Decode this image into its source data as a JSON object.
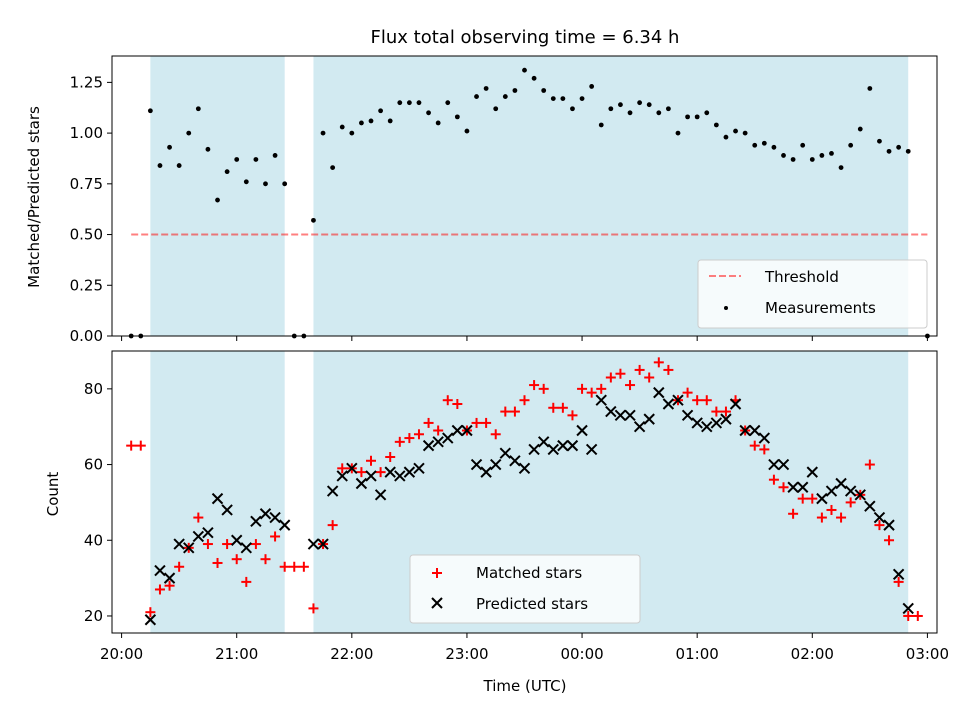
{
  "chart_data": [
    {
      "type": "scatter",
      "title": "Flux total observing time = 6.34 h",
      "xlabel": "",
      "ylabel": "Matched/Predicted stars",
      "ylim": [
        0,
        1.38
      ],
      "yticks": [
        "0.00",
        "0.25",
        "0.50",
        "0.75",
        "1.00",
        "1.25"
      ],
      "threshold": 0.5,
      "legend": {
        "placement": "lower-right",
        "entries": [
          "Threshold",
          "Measurements"
        ]
      },
      "measurements": [
        [
          "20:05",
          0
        ],
        [
          "20:10",
          0
        ],
        [
          "20:15",
          1.11
        ],
        [
          "20:20",
          0.84
        ],
        [
          "20:25",
          0.93
        ],
        [
          "20:30",
          0.84
        ],
        [
          "20:35",
          1.0
        ],
        [
          "20:40",
          1.12
        ],
        [
          "20:45",
          0.92
        ],
        [
          "20:50",
          0.67
        ],
        [
          "20:55",
          0.81
        ],
        [
          "21:00",
          0.87
        ],
        [
          "21:05",
          0.76
        ],
        [
          "21:10",
          0.87
        ],
        [
          "21:15",
          0.75
        ],
        [
          "21:20",
          0.89
        ],
        [
          "21:25",
          0.75
        ],
        [
          "21:30",
          0
        ],
        [
          "21:35",
          0
        ],
        [
          "21:40",
          0.57
        ],
        [
          "21:45",
          1.0
        ],
        [
          "21:50",
          0.83
        ],
        [
          "21:55",
          1.03
        ],
        [
          "22:00",
          1.0
        ],
        [
          "22:05",
          1.05
        ],
        [
          "22:10",
          1.06
        ],
        [
          "22:15",
          1.11
        ],
        [
          "22:20",
          1.06
        ],
        [
          "22:25",
          1.15
        ],
        [
          "22:30",
          1.15
        ],
        [
          "22:35",
          1.15
        ],
        [
          "22:40",
          1.1
        ],
        [
          "22:45",
          1.05
        ],
        [
          "22:50",
          1.15
        ],
        [
          "22:55",
          1.08
        ],
        [
          "23:00",
          1.01
        ],
        [
          "23:05",
          1.18
        ],
        [
          "23:10",
          1.22
        ],
        [
          "23:15",
          1.12
        ],
        [
          "23:20",
          1.18
        ],
        [
          "23:25",
          1.21
        ],
        [
          "23:30",
          1.31
        ],
        [
          "23:35",
          1.27
        ],
        [
          "23:40",
          1.21
        ],
        [
          "23:45",
          1.17
        ],
        [
          "23:50",
          1.17
        ],
        [
          "23:55",
          1.12
        ],
        [
          "00:00",
          1.17
        ],
        [
          "00:05",
          1.23
        ],
        [
          "00:10",
          1.04
        ],
        [
          "00:15",
          1.12
        ],
        [
          "00:20",
          1.14
        ],
        [
          "00:25",
          1.1
        ],
        [
          "00:30",
          1.15
        ],
        [
          "00:35",
          1.14
        ],
        [
          "00:40",
          1.1
        ],
        [
          "00:45",
          1.12
        ],
        [
          "00:50",
          1.0
        ],
        [
          "00:55",
          1.08
        ],
        [
          "01:00",
          1.08
        ],
        [
          "01:05",
          1.1
        ],
        [
          "01:10",
          1.04
        ],
        [
          "01:15",
          0.98
        ],
        [
          "01:20",
          1.01
        ],
        [
          "01:25",
          1.0
        ],
        [
          "01:30",
          0.94
        ],
        [
          "01:35",
          0.95
        ],
        [
          "01:40",
          0.93
        ],
        [
          "01:45",
          0.89
        ],
        [
          "01:50",
          0.87
        ],
        [
          "01:55",
          0.94
        ],
        [
          "02:00",
          0.87
        ],
        [
          "02:05",
          0.89
        ],
        [
          "02:10",
          0.9
        ],
        [
          "02:15",
          0.83
        ],
        [
          "02:20",
          0.94
        ],
        [
          "02:25",
          1.02
        ],
        [
          "02:30",
          1.22
        ],
        [
          "02:35",
          0.96
        ],
        [
          "02:40",
          0.91
        ],
        [
          "02:45",
          0.93
        ],
        [
          "02:50",
          0.91
        ],
        [
          "03:00",
          0
        ]
      ]
    },
    {
      "type": "scatter",
      "title": "",
      "xlabel": "Time (UTC)",
      "ylabel": "Count",
      "ylim": [
        15.5,
        90
      ],
      "yticks": [
        "20",
        "40",
        "60",
        "80"
      ],
      "xticks": [
        "20:00",
        "21:00",
        "22:00",
        "23:00",
        "00:00",
        "01:00",
        "02:00",
        "03:00"
      ],
      "xlim": [
        "19:55",
        "03:05"
      ],
      "legend": {
        "placement": "lower-center",
        "entries": [
          "Matched stars",
          "Predicted stars"
        ]
      },
      "series": [
        {
          "name": "Matched stars",
          "marker": "+",
          "color": "#ff0000",
          "points": [
            [
              "20:05",
              65
            ],
            [
              "20:10",
              65
            ],
            [
              "20:15",
              21
            ],
            [
              "20:20",
              27
            ],
            [
              "20:25",
              28
            ],
            [
              "20:30",
              33
            ],
            [
              "20:35",
              38
            ],
            [
              "20:40",
              46
            ],
            [
              "20:45",
              39
            ],
            [
              "20:50",
              34
            ],
            [
              "20:55",
              39
            ],
            [
              "21:00",
              35
            ],
            [
              "21:05",
              29
            ],
            [
              "21:10",
              39
            ],
            [
              "21:15",
              35
            ],
            [
              "21:20",
              41
            ],
            [
              "21:25",
              33
            ],
            [
              "21:30",
              33
            ],
            [
              "21:35",
              33
            ],
            [
              "21:40",
              22
            ],
            [
              "21:45",
              39
            ],
            [
              "21:50",
              44
            ],
            [
              "21:55",
              59
            ],
            [
              "22:00",
              59
            ],
            [
              "22:05",
              58
            ],
            [
              "22:10",
              61
            ],
            [
              "22:15",
              58
            ],
            [
              "22:20",
              62
            ],
            [
              "22:25",
              66
            ],
            [
              "22:30",
              67
            ],
            [
              "22:35",
              68
            ],
            [
              "22:40",
              71
            ],
            [
              "22:45",
              69
            ],
            [
              "22:50",
              77
            ],
            [
              "22:55",
              76
            ],
            [
              "23:00",
              69
            ],
            [
              "23:05",
              71
            ],
            [
              "23:10",
              71
            ],
            [
              "23:15",
              68
            ],
            [
              "23:20",
              74
            ],
            [
              "23:25",
              74
            ],
            [
              "23:30",
              77
            ],
            [
              "23:35",
              81
            ],
            [
              "23:40",
              80
            ],
            [
              "23:45",
              75
            ],
            [
              "23:50",
              75
            ],
            [
              "23:55",
              73
            ],
            [
              "00:00",
              80
            ],
            [
              "00:05",
              79
            ],
            [
              "00:10",
              80
            ],
            [
              "00:15",
              83
            ],
            [
              "00:20",
              84
            ],
            [
              "00:25",
              81
            ],
            [
              "00:30",
              85
            ],
            [
              "00:35",
              83
            ],
            [
              "00:40",
              87
            ],
            [
              "00:45",
              85
            ],
            [
              "00:50",
              77
            ],
            [
              "00:55",
              79
            ],
            [
              "01:00",
              77
            ],
            [
              "01:05",
              77
            ],
            [
              "01:10",
              74
            ],
            [
              "01:15",
              74
            ],
            [
              "01:20",
              77
            ],
            [
              "01:25",
              69
            ],
            [
              "01:30",
              65
            ],
            [
              "01:35",
              64
            ],
            [
              "01:40",
              56
            ],
            [
              "01:45",
              54
            ],
            [
              "01:50",
              47
            ],
            [
              "01:55",
              51
            ],
            [
              "02:00",
              51
            ],
            [
              "02:05",
              46
            ],
            [
              "02:10",
              48
            ],
            [
              "02:15",
              46
            ],
            [
              "02:20",
              50
            ],
            [
              "02:25",
              52
            ],
            [
              "02:30",
              60
            ],
            [
              "02:35",
              44
            ],
            [
              "02:40",
              40
            ],
            [
              "02:45",
              29
            ],
            [
              "02:50",
              20
            ],
            [
              "02:55",
              20
            ]
          ]
        },
        {
          "name": "Predicted stars",
          "marker": "x",
          "color": "#000000",
          "points": [
            [
              "20:15",
              19
            ],
            [
              "20:20",
              32
            ],
            [
              "20:25",
              30
            ],
            [
              "20:30",
              39
            ],
            [
              "20:35",
              38
            ],
            [
              "20:40",
              41
            ],
            [
              "20:45",
              42
            ],
            [
              "20:50",
              51
            ],
            [
              "20:55",
              48
            ],
            [
              "21:00",
              40
            ],
            [
              "21:05",
              38
            ],
            [
              "21:10",
              45
            ],
            [
              "21:15",
              47
            ],
            [
              "21:20",
              46
            ],
            [
              "21:25",
              44
            ],
            [
              "21:40",
              39
            ],
            [
              "21:45",
              39
            ],
            [
              "21:50",
              53
            ],
            [
              "21:55",
              57
            ],
            [
              "22:00",
              59
            ],
            [
              "22:05",
              55
            ],
            [
              "22:10",
              57
            ],
            [
              "22:15",
              52
            ],
            [
              "22:20",
              58
            ],
            [
              "22:25",
              57
            ],
            [
              "22:30",
              58
            ],
            [
              "22:35",
              59
            ],
            [
              "22:40",
              65
            ],
            [
              "22:45",
              66
            ],
            [
              "22:50",
              67
            ],
            [
              "22:55",
              69
            ],
            [
              "23:00",
              69
            ],
            [
              "23:05",
              60
            ],
            [
              "23:10",
              58
            ],
            [
              "23:15",
              60
            ],
            [
              "23:20",
              63
            ],
            [
              "23:25",
              61
            ],
            [
              "23:30",
              59
            ],
            [
              "23:35",
              64
            ],
            [
              "23:40",
              66
            ],
            [
              "23:45",
              64
            ],
            [
              "23:50",
              65
            ],
            [
              "23:55",
              65
            ],
            [
              "00:00",
              69
            ],
            [
              "00:05",
              64
            ],
            [
              "00:10",
              77
            ],
            [
              "00:15",
              74
            ],
            [
              "00:20",
              73
            ],
            [
              "00:25",
              73
            ],
            [
              "00:30",
              70
            ],
            [
              "00:35",
              72
            ],
            [
              "00:40",
              79
            ],
            [
              "00:45",
              76
            ],
            [
              "00:50",
              77
            ],
            [
              "00:55",
              73
            ],
            [
              "01:00",
              71
            ],
            [
              "01:05",
              70
            ],
            [
              "01:10",
              71
            ],
            [
              "01:15",
              72
            ],
            [
              "01:20",
              76
            ],
            [
              "01:25",
              69
            ],
            [
              "01:30",
              69
            ],
            [
              "01:35",
              67
            ],
            [
              "01:40",
              60
            ],
            [
              "01:45",
              60
            ],
            [
              "01:50",
              54
            ],
            [
              "01:55",
              54
            ],
            [
              "02:00",
              58
            ],
            [
              "02:05",
              51
            ],
            [
              "02:10",
              53
            ],
            [
              "02:15",
              55
            ],
            [
              "02:20",
              53
            ],
            [
              "02:25",
              52
            ],
            [
              "02:30",
              49
            ],
            [
              "02:35",
              46
            ],
            [
              "02:40",
              44
            ],
            [
              "02:45",
              31
            ],
            [
              "02:50",
              22
            ]
          ]
        }
      ]
    }
  ],
  "shaded_intervals": [
    [
      "20:15",
      "21:25"
    ],
    [
      "21:40",
      "02:50"
    ]
  ],
  "colors": {
    "shade": "#add8e6",
    "threshold": "#ff0000",
    "matched": "#ff0000",
    "predicted": "#000000"
  }
}
